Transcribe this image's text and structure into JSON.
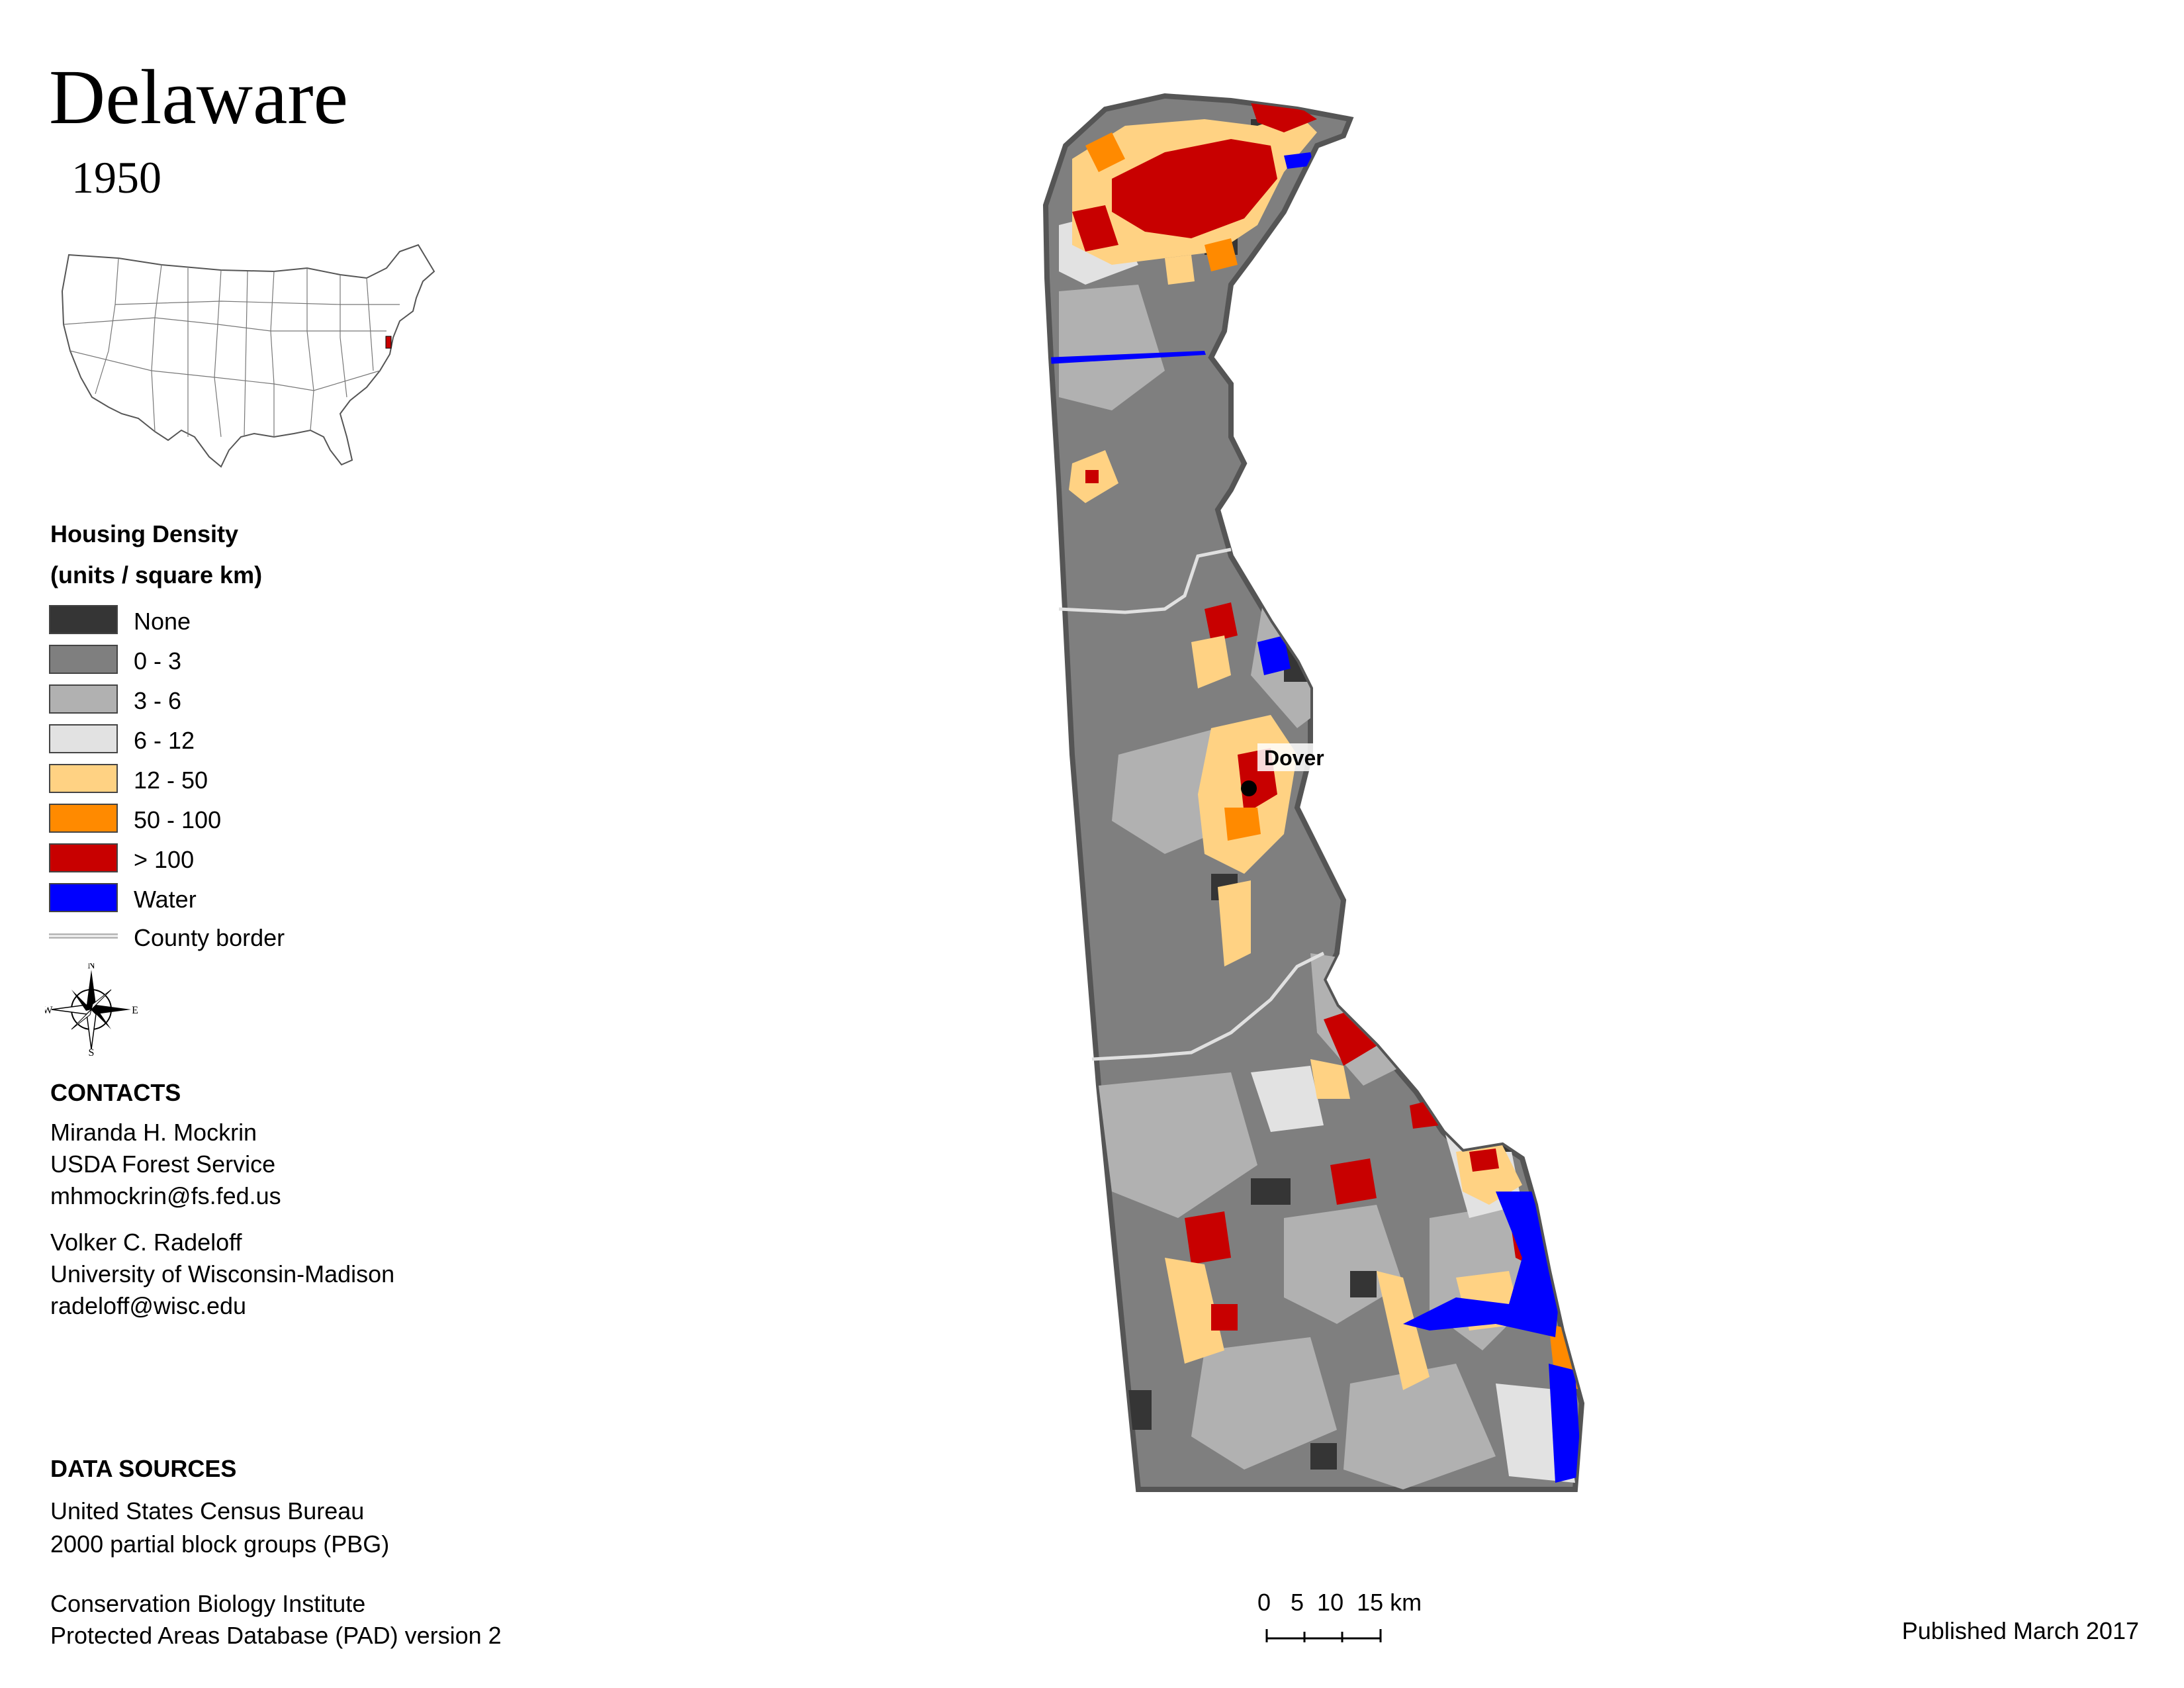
{
  "header": {
    "title": "Delaware",
    "year": "1950"
  },
  "legend": {
    "title": "Housing Density",
    "subtitle": "(units / square km)",
    "items": [
      {
        "label": "None",
        "color": "#353535"
      },
      {
        "label": "0 - 3",
        "color": "#7f7f7f"
      },
      {
        "label": "3 - 6",
        "color": "#b1b1b1"
      },
      {
        "label": "6 - 12",
        "color": "#e2e2e2"
      },
      {
        "label": "12 - 50",
        "color": "#ffd283"
      },
      {
        "label": "50 - 100",
        "color": "#ff8a00"
      },
      {
        "label": "> 100",
        "color": "#c80000"
      },
      {
        "label": "Water",
        "color": "#0000ff"
      }
    ],
    "county_border_label": "County border"
  },
  "compass": {
    "n": "N",
    "s": "S",
    "e": "E",
    "w": "W"
  },
  "contacts": {
    "heading": "CONTACTS",
    "person1": {
      "name": "Miranda H. Mockrin",
      "org": "USDA Forest Service",
      "email": "mhmockrin@fs.fed.us"
    },
    "person2": {
      "name": "Volker C. Radeloff",
      "org": "University of Wisconsin-Madison",
      "email": "radeloff@wisc.edu"
    }
  },
  "data_sources": {
    "heading": "DATA SOURCES",
    "source1_line1": "United States Census Bureau",
    "source1_line2": "2000 partial block groups (PBG)",
    "source2_line1": "Conservation Biology Institute",
    "source2_line2": "Protected Areas Database (PAD) version 2"
  },
  "map": {
    "city_label": "Dover"
  },
  "scale": {
    "labels": "0   5  10  15 km"
  },
  "footer": {
    "published": "Published March 2017"
  }
}
